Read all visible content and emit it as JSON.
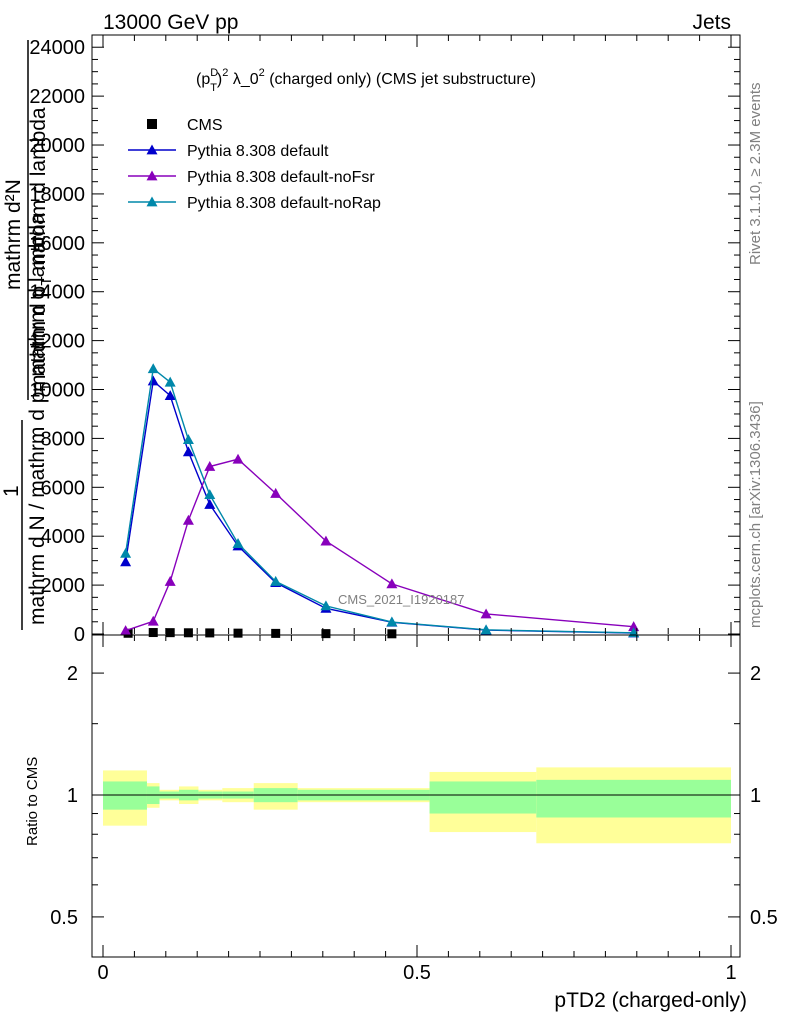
{
  "header": {
    "left": "13000 GeV pp",
    "right": "Jets"
  },
  "side_labels": {
    "rivet": "Rivet 3.1.10, ≥ 2.3M events",
    "mcplots": "mcplots.cern.ch [arXiv:1306.3436]"
  },
  "watermark": "CMS_2021_I1920187",
  "chart_data": [
    {
      "type": "line",
      "title": "(p_T^D)^2 λ_0^2 (charged only) (CMS jet substructure)",
      "title_parts": {
        "base": "(p",
        "sup_d": "D",
        "sub_t": "T",
        "close": ")",
        "sup_2a": "2",
        "mid": " λ_0",
        "sup_2b": "2",
        "tail": " (charged only) (CMS jet substructure)"
      },
      "ylabel_lines": [
        "mathrm d N",
        "mathrm d p",
        "T",
        "mathrm d lambda",
        "1",
        "mathrm d N",
        "mathrm d p",
        "T",
        "mathrm d lambda"
      ],
      "ylabel_left": {
        "one": "1",
        "big": "mathrm d N / mathrm d p",
        "sub": "T",
        "tail": " mathrm d lambda"
      },
      "ylabel_right": {
        "num": "mathrm d²N",
        "den": "mathrm d p",
        "sub": "T",
        "tail": " mathrm d lambda"
      },
      "xlim": [
        0,
        1
      ],
      "ylim": [
        0,
        24500
      ],
      "y_ticks": [
        0,
        2000,
        4000,
        6000,
        8000,
        10000,
        12000,
        14000,
        16000,
        18000,
        20000,
        22000,
        24000
      ],
      "y_tick_labels": [
        "0",
        "2000",
        "4000",
        "6000",
        "8000",
        "10000",
        "12000",
        "14000",
        "16000",
        "18000",
        "20000",
        "22000",
        "24000"
      ],
      "legend_position": "top-left",
      "series": [
        {
          "name": "CMS",
          "style": "markers",
          "color": "#000000",
          "x": [
            0.04,
            0.08,
            0.107,
            0.136,
            0.17,
            0.215,
            0.275,
            0.355,
            0.46
          ],
          "y": [
            30,
            60,
            55,
            50,
            45,
            35,
            25,
            15,
            8
          ]
        },
        {
          "name": "Pythia 8.308 default",
          "color": "#0000cc",
          "x": [
            0.036,
            0.08,
            0.107,
            0.136,
            0.17,
            0.215,
            0.275,
            0.355,
            0.46,
            0.61,
            0.845
          ],
          "y": [
            2950,
            10350,
            9750,
            7450,
            5300,
            3600,
            2100,
            1050,
            480,
            160,
            40
          ]
        },
        {
          "name": "Pythia 8.308 default-noFsr",
          "color": "#8800bb",
          "x": [
            0.036,
            0.08,
            0.107,
            0.136,
            0.17,
            0.215,
            0.275,
            0.355,
            0.46,
            0.61,
            0.845
          ],
          "y": [
            140,
            520,
            2150,
            4650,
            6850,
            7150,
            5750,
            3800,
            2050,
            820,
            300
          ]
        },
        {
          "name": "Pythia 8.308 default-noRap",
          "color": "#0088aa",
          "x": [
            0.036,
            0.08,
            0.107,
            0.136,
            0.17,
            0.215,
            0.275,
            0.355,
            0.46,
            0.61,
            0.845
          ],
          "y": [
            3300,
            10850,
            10300,
            7950,
            5700,
            3700,
            2150,
            1150,
            490,
            170,
            50
          ]
        }
      ]
    },
    {
      "type": "area",
      "ylabel": "Ratio to CMS",
      "xlabel": "pTD2 (charged-only)",
      "xlim": [
        0,
        1
      ],
      "ylim": [
        0.42,
        2.35
      ],
      "x_ticks": [
        0,
        0.5,
        1
      ],
      "x_tick_labels": [
        "0",
        "0.5",
        "1"
      ],
      "y_ticks": [
        0.5,
        1,
        2
      ],
      "y_tick_labels": [
        "0.5",
        "1",
        "2"
      ],
      "band_colors": {
        "inner": "#99ff99",
        "outer": "#ffff99"
      },
      "bins": [
        {
          "x0": 0.0,
          "x1": 0.07,
          "inner": [
            0.92,
            1.08
          ],
          "outer": [
            0.84,
            1.15
          ]
        },
        {
          "x0": 0.07,
          "x1": 0.09,
          "inner": [
            0.95,
            1.05
          ],
          "outer": [
            0.93,
            1.07
          ]
        },
        {
          "x0": 0.09,
          "x1": 0.121,
          "inner": [
            0.98,
            1.02
          ],
          "outer": [
            0.97,
            1.03
          ]
        },
        {
          "x0": 0.121,
          "x1": 0.152,
          "inner": [
            0.97,
            1.03
          ],
          "outer": [
            0.95,
            1.05
          ]
        },
        {
          "x0": 0.152,
          "x1": 0.19,
          "inner": [
            0.98,
            1.02
          ],
          "outer": [
            0.97,
            1.03
          ]
        },
        {
          "x0": 0.19,
          "x1": 0.24,
          "inner": [
            0.98,
            1.02
          ],
          "outer": [
            0.96,
            1.04
          ]
        },
        {
          "x0": 0.24,
          "x1": 0.31,
          "inner": [
            0.96,
            1.04
          ],
          "outer": [
            0.92,
            1.07
          ]
        },
        {
          "x0": 0.31,
          "x1": 0.52,
          "inner": [
            0.97,
            1.03
          ],
          "outer": [
            0.96,
            1.04
          ]
        },
        {
          "x0": 0.52,
          "x1": 0.69,
          "inner": [
            0.9,
            1.08
          ],
          "outer": [
            0.81,
            1.14
          ]
        },
        {
          "x0": 0.69,
          "x1": 1.0,
          "inner": [
            0.88,
            1.09
          ],
          "outer": [
            0.76,
            1.17
          ]
        }
      ]
    }
  ]
}
